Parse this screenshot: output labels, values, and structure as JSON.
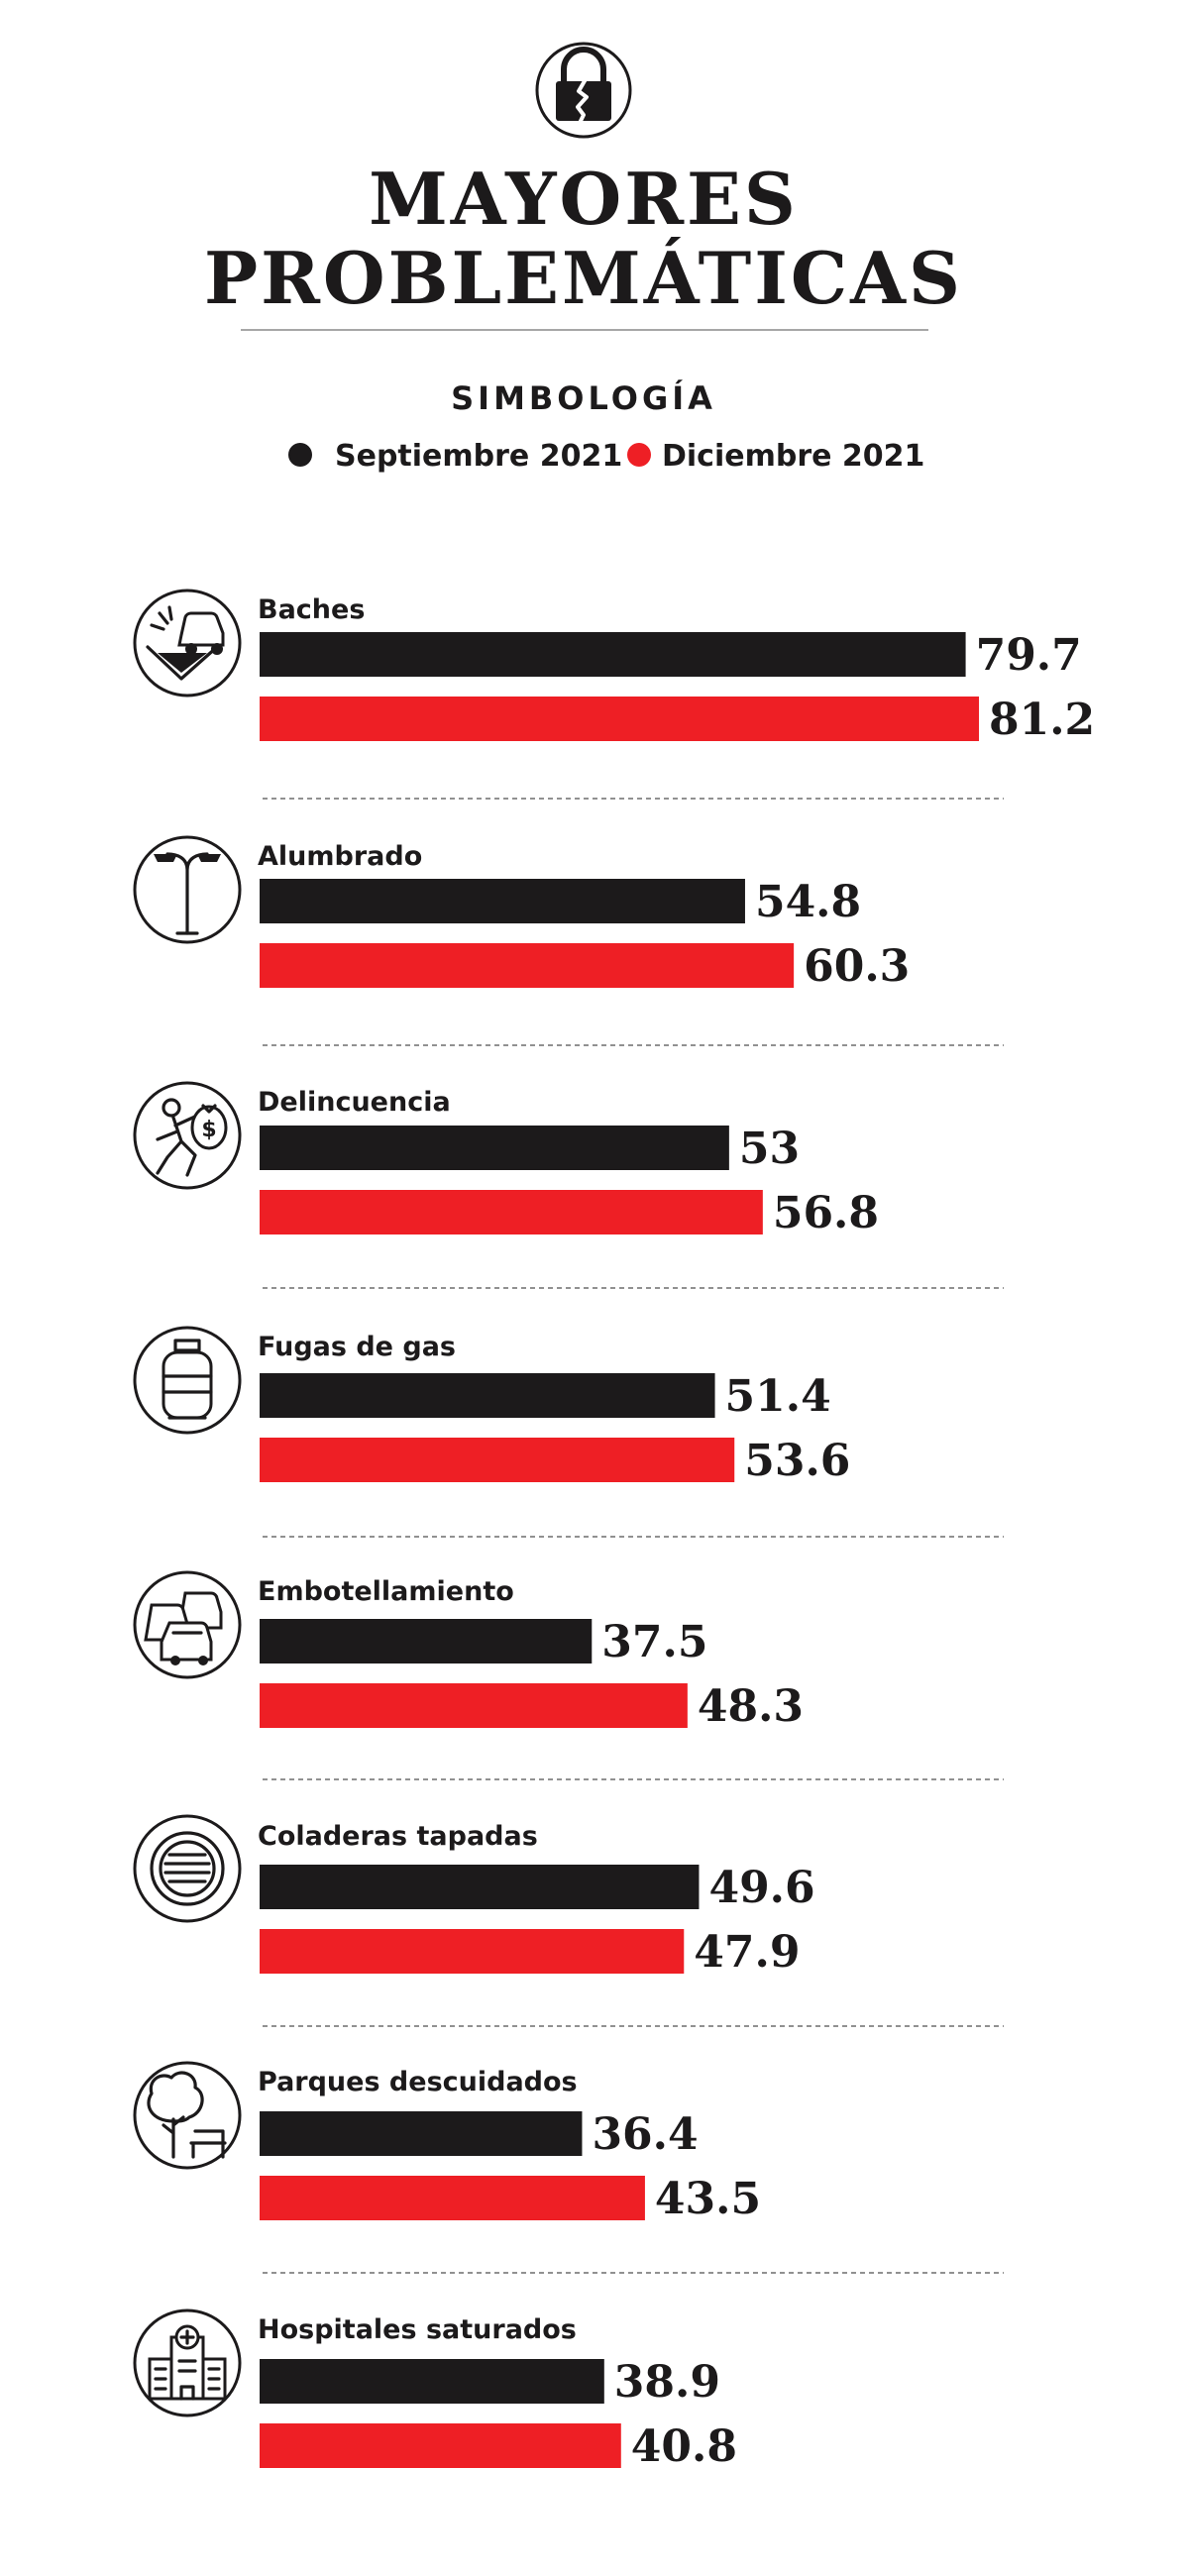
{
  "header": {
    "title_lines": [
      "MAYORES",
      "PROBLEMÁTICAS"
    ],
    "logo_icon": "broken-padlock-icon"
  },
  "legend": {
    "heading": "SIMBOLOGÍA",
    "items": [
      {
        "label": "Septiembre 2021",
        "color": "#1c1a1b"
      },
      {
        "label": "Diciembre 2021",
        "color": "#ee1f25"
      }
    ]
  },
  "chart_data": {
    "type": "bar",
    "orientation": "horizontal",
    "title": "MAYORES PROBLEMÁTICAS",
    "categories": [
      "Baches",
      "Alumbrado",
      "Delincuencia",
      "Fugas de gas",
      "Embotellamiento",
      "Coladeras tapadas",
      "Parques descuidados",
      "Hospitales saturados"
    ],
    "category_icons": [
      "pothole-car-icon",
      "streetlight-icon",
      "thief-money-bag-icon",
      "gas-cylinder-icon",
      "traffic-jam-icon",
      "drain-grate-icon",
      "park-tree-bench-icon",
      "hospital-icon"
    ],
    "series": [
      {
        "name": "Septiembre 2021",
        "color": "#1c1a1b",
        "values": [
          79.7,
          54.8,
          53,
          51.4,
          37.5,
          49.6,
          36.4,
          38.9
        ]
      },
      {
        "name": "Diciembre 2021",
        "color": "#ee1f25",
        "values": [
          81.2,
          60.3,
          56.8,
          53.6,
          48.3,
          47.9,
          43.5,
          40.8
        ]
      }
    ],
    "value_labels": [
      [
        "79.7",
        "54.8",
        "53",
        "51.4",
        "37.5",
        "49.6",
        "36.4",
        "38.9"
      ],
      [
        "81.2",
        "60.3",
        "56.8",
        "53.6",
        "48.3",
        "47.9",
        "43.5",
        "40.8"
      ]
    ],
    "xlim": [
      0,
      81.2
    ],
    "grid": false,
    "legend_position": "top"
  }
}
